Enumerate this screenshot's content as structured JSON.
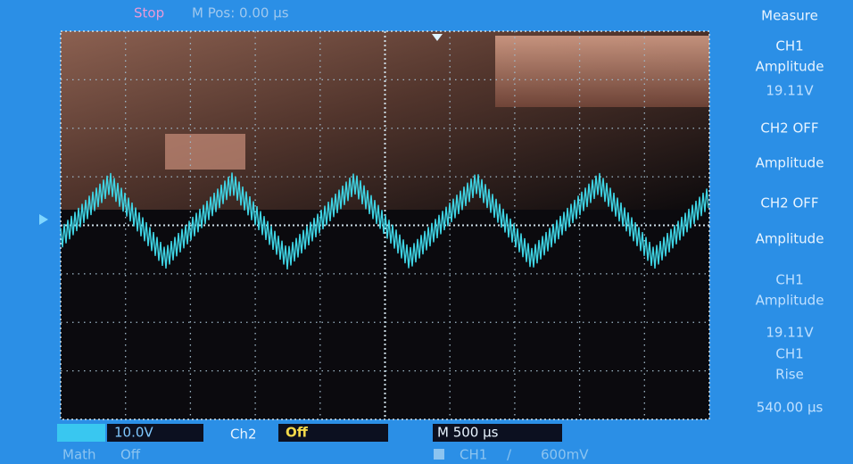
{
  "header": {
    "status": "Stop",
    "position": "M Pos: 0.00 µs"
  },
  "measure": {
    "title": "Measure",
    "lines": [
      "CH1",
      "Amplitude",
      "19.11V",
      "CH2 OFF",
      "Amplitude",
      "CH2 OFF",
      "Amplitude",
      "CH1",
      "Amplitude",
      "19.11V",
      "CH1",
      "Rise",
      "540.00 µs"
    ]
  },
  "footer": {
    "ch1_scale": "10.0V",
    "ch2_label": "Ch2",
    "ch2_state": "Off",
    "timebase": "M 500 µs",
    "math_label": "Math",
    "math_state": "Off",
    "trigger_source": "CH1",
    "trigger_slope": "/",
    "trigger_level": "600mV"
  }
}
